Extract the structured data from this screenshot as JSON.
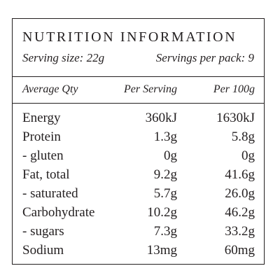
{
  "panel": {
    "title": "NUTRITION INFORMATION",
    "serving_size": "Serving size: 22g",
    "servings_per_pack": "Servings per pack: 9"
  },
  "table": {
    "headers": [
      "Average Qty",
      "Per Serving",
      "Per 100g"
    ],
    "rows": [
      {
        "name": "Energy",
        "per_serving": "360kJ",
        "per_100g": "1630kJ"
      },
      {
        "name": "Protein",
        "per_serving": "1.3g",
        "per_100g": "5.8g"
      },
      {
        "name": "- gluten",
        "per_serving": "0g",
        "per_100g": "0g"
      },
      {
        "name": "Fat, total",
        "per_serving": "9.2g",
        "per_100g": "41.6g"
      },
      {
        "name": "- saturated",
        "per_serving": "5.7g",
        "per_100g": "26.0g"
      },
      {
        "name": "Carbohydrate",
        "per_serving": "10.2g",
        "per_100g": "46.2g"
      },
      {
        "name": "- sugars",
        "per_serving": "7.3g",
        "per_100g": "33.2g"
      },
      {
        "name": "Sodium",
        "per_serving": "13mg",
        "per_100g": "60mg"
      }
    ]
  }
}
